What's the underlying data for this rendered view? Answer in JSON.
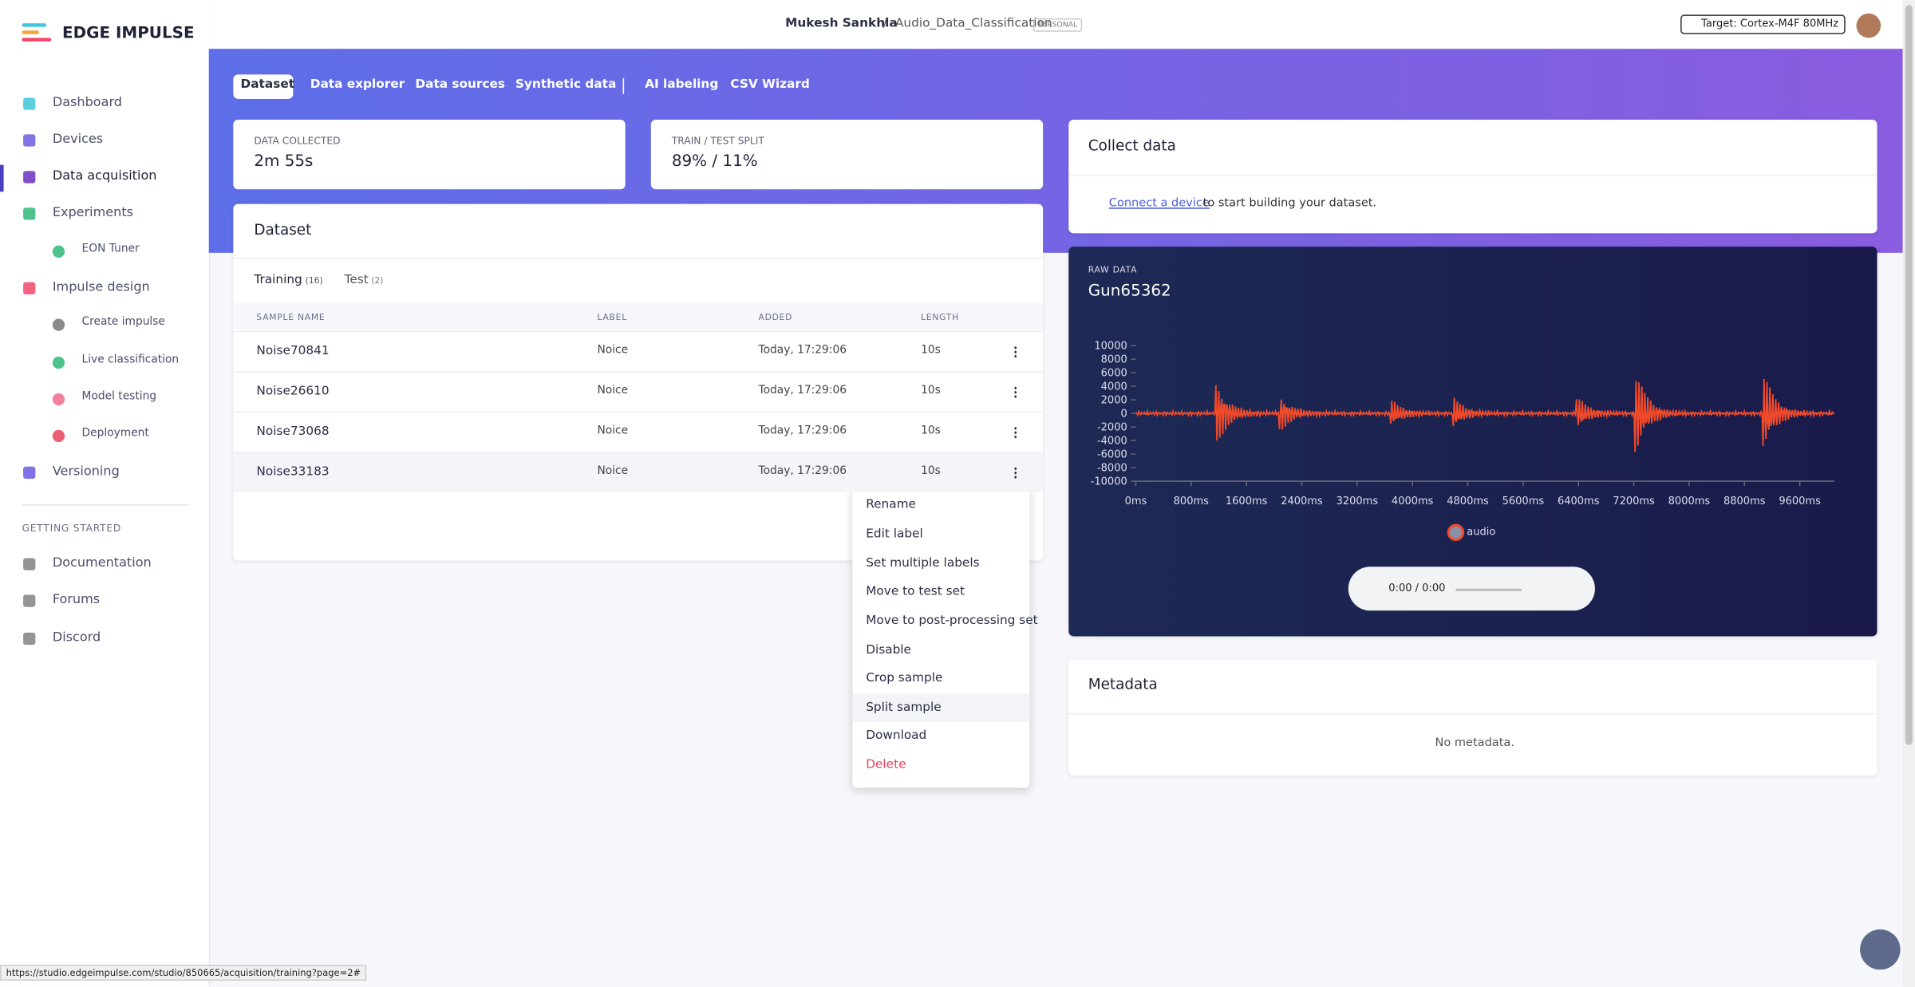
{
  "sidebar": {
    "brand": "EDGE IMPULSE",
    "nav": [
      "Dashboard",
      "Devices",
      "Data acquisition",
      "Experiments",
      "EON Tuner",
      "Impulse design",
      "Create impulse",
      "Live classification",
      "Model testing",
      "Deployment",
      "Versioning"
    ],
    "section": "GETTING STARTED",
    "links": [
      "Documentation",
      "Forums",
      "Discord"
    ]
  },
  "header": {
    "user": "Mukesh Sankhla",
    "separator": "/",
    "project": "Audio_Data_Classification",
    "badge": "PERSONAL",
    "target": "Target: Cortex-M4F 80MHz"
  },
  "tabs": [
    "Dataset",
    "Data explorer",
    "Data sources",
    "Synthetic data",
    "AI labeling",
    "CSV Wizard"
  ],
  "stats": [
    {
      "label": "DATA COLLECTED",
      "value": "2m 55s"
    },
    {
      "label": "TRAIN / TEST SPLIT",
      "value": "89% / 11%"
    }
  ],
  "dataset": {
    "title": "Dataset",
    "tabs": [
      {
        "name": "Training",
        "count": "(16)"
      },
      {
        "name": "Test",
        "count": "(2)"
      }
    ],
    "columns": [
      "SAMPLE NAME",
      "LABEL",
      "ADDED",
      "LENGTH"
    ],
    "rows": [
      [
        "Noise70841",
        "Noice",
        "Today, 17:29:06",
        "10s"
      ],
      [
        "Noise26610",
        "Noice",
        "Today, 17:29:06",
        "10s"
      ],
      [
        "Noise73068",
        "Noice",
        "Today, 17:29:06",
        "10s"
      ],
      [
        "Noise33183",
        "Noice",
        "Today, 17:29:06",
        "10s"
      ]
    ]
  },
  "menu": [
    "Rename",
    "Edit label",
    "Set multiple labels",
    "Move to test set",
    "Move to post-processing set",
    "Disable",
    "Crop sample",
    "Split sample",
    "Download",
    "Delete"
  ],
  "collect": {
    "title": "Collect data",
    "link": "Connect a device",
    "text": "to start building your dataset."
  },
  "raw": {
    "label": "RAW DATA",
    "title": "Gun65362",
    "ylim": [
      -10000,
      10000
    ],
    "yticks": [
      10000,
      8000,
      6000,
      4000,
      2000,
      0,
      -2000,
      -4000,
      -6000,
      -8000,
      -10000
    ],
    "xlim": [
      0,
      10100
    ],
    "xticks": [
      {
        "value": 0,
        "label": "0ms"
      },
      {
        "value": 800,
        "label": "800ms"
      },
      {
        "value": 1600,
        "label": "1600ms"
      },
      {
        "value": 2400,
        "label": "2400ms"
      },
      {
        "value": 3200,
        "label": "3200ms"
      },
      {
        "value": 4000,
        "label": "4000ms"
      },
      {
        "value": 4800,
        "label": "4800ms"
      },
      {
        "value": 5600,
        "label": "5600ms"
      },
      {
        "value": 6400,
        "label": "6400ms"
      },
      {
        "value": 7200,
        "label": "7200ms"
      },
      {
        "value": 8000,
        "label": "8000ms"
      },
      {
        "value": 8800,
        "label": "8800ms"
      },
      {
        "value": 9600,
        "label": "9600ms"
      }
    ],
    "legend": "audio",
    "time": "0:00 / 0:00"
  },
  "metadata": {
    "title": "Metadata",
    "empty": "No metadata."
  },
  "status_url": "https://studio.edgeimpulse.com/studio/850665/acquisition/training?page=2#"
}
